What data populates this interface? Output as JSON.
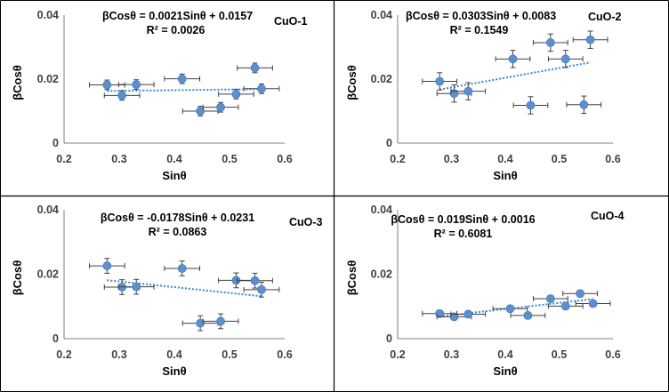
{
  "colors": {
    "marker": "#5b8fd0",
    "trend": "#2e89d9",
    "error_bar": "#404040",
    "axis": "#808080",
    "border": "#000000"
  },
  "chart_data": [
    {
      "type": "scatter",
      "sample": "CuO-1",
      "equation": "βCosθ = 0.0021Sinθ + 0.0157",
      "r2": "R² = 0.0026",
      "xlabel": "Sinθ",
      "ylabel": "βCosθ",
      "xlim": [
        0.2,
        0.6
      ],
      "ylim": [
        0,
        0.04
      ],
      "xticks": [
        "0.2",
        "0.3",
        "0.4",
        "0.5",
        "0.6"
      ],
      "yticks": [
        "0",
        "0.02",
        "0.04"
      ],
      "x_error": 0.032,
      "y_error": 0.0015,
      "points": [
        {
          "x": 0.278,
          "y": 0.0182
        },
        {
          "x": 0.305,
          "y": 0.0149
        },
        {
          "x": 0.331,
          "y": 0.0183
        },
        {
          "x": 0.414,
          "y": 0.0201
        },
        {
          "x": 0.447,
          "y": 0.01
        },
        {
          "x": 0.484,
          "y": 0.0112
        },
        {
          "x": 0.512,
          "y": 0.0153
        },
        {
          "x": 0.546,
          "y": 0.0235
        },
        {
          "x": 0.558,
          "y": 0.017
        }
      ],
      "trendline": {
        "slope": 0.0021,
        "intercept": 0.0157,
        "x_range": [
          0.278,
          0.558
        ]
      }
    },
    {
      "type": "scatter",
      "sample": "CuO-2",
      "equation": "βCosθ = 0.0303Sinθ + 0.0083",
      "r2": "R² = 0.1549",
      "xlabel": "Sinθ",
      "ylabel": "βCosθ",
      "xlim": [
        0.2,
        0.6
      ],
      "ylim": [
        0,
        0.04
      ],
      "xticks": [
        "0.2",
        "0.3",
        "0.4",
        "0.5",
        "0.6"
      ],
      "yticks": [
        "0",
        "0.02",
        "0.04"
      ],
      "x_error": 0.032,
      "y_error": 0.0027,
      "points": [
        {
          "x": 0.278,
          "y": 0.0193
        },
        {
          "x": 0.305,
          "y": 0.0155
        },
        {
          "x": 0.331,
          "y": 0.0162
        },
        {
          "x": 0.414,
          "y": 0.0263
        },
        {
          "x": 0.447,
          "y": 0.0118
        },
        {
          "x": 0.484,
          "y": 0.0314
        },
        {
          "x": 0.512,
          "y": 0.0263
        },
        {
          "x": 0.546,
          "y": 0.012
        },
        {
          "x": 0.558,
          "y": 0.0323
        }
      ],
      "trendline": {
        "slope": 0.0303,
        "intercept": 0.0083,
        "x_range": [
          0.278,
          0.558
        ]
      }
    },
    {
      "type": "scatter",
      "sample": "CuO-3",
      "equation": "βCosθ = -0.0178Sinθ + 0.0231",
      "r2": "R² = 0.0863",
      "xlabel": "Sinθ",
      "ylabel": "βCosθ",
      "xlim": [
        0.2,
        0.6
      ],
      "ylim": [
        0,
        0.04
      ],
      "xticks": [
        "0.2",
        "0.3",
        "0.4",
        "0.5",
        "0.6"
      ],
      "yticks": [
        "0",
        "0.02",
        "0.04"
      ],
      "x_error": 0.032,
      "y_error": 0.0023,
      "points": [
        {
          "x": 0.278,
          "y": 0.0226
        },
        {
          "x": 0.305,
          "y": 0.016
        },
        {
          "x": 0.331,
          "y": 0.0161
        },
        {
          "x": 0.414,
          "y": 0.0218
        },
        {
          "x": 0.447,
          "y": 0.0048
        },
        {
          "x": 0.484,
          "y": 0.0054
        },
        {
          "x": 0.512,
          "y": 0.0181
        },
        {
          "x": 0.546,
          "y": 0.018
        },
        {
          "x": 0.558,
          "y": 0.0152
        }
      ],
      "trendline": {
        "slope": -0.0178,
        "intercept": 0.0231,
        "x_range": [
          0.278,
          0.558
        ]
      }
    },
    {
      "type": "scatter",
      "sample": "CuO-4",
      "equation": "βCosθ = 0.019Sinθ + 0.0016",
      "r2": "R² = 0.6081",
      "xlabel": "Sinθ",
      "ylabel": "βCosθ",
      "xlim": [
        0.2,
        0.6
      ],
      "ylim": [
        0,
        0.04
      ],
      "xticks": [
        "0.2",
        "0.3",
        "0.4",
        "0.5",
        "0.6"
      ],
      "yticks": [
        "0",
        "0.02",
        "0.04"
      ],
      "x_error": 0.032,
      "y_error": 0.001,
      "points": [
        {
          "x": 0.278,
          "y": 0.0078
        },
        {
          "x": 0.305,
          "y": 0.0068
        },
        {
          "x": 0.331,
          "y": 0.0076
        },
        {
          "x": 0.409,
          "y": 0.0093
        },
        {
          "x": 0.442,
          "y": 0.0072
        },
        {
          "x": 0.484,
          "y": 0.0124
        },
        {
          "x": 0.512,
          "y": 0.0101
        },
        {
          "x": 0.539,
          "y": 0.014
        },
        {
          "x": 0.563,
          "y": 0.0109
        }
      ],
      "trendline": {
        "slope": 0.019,
        "intercept": 0.0016,
        "x_range": [
          0.278,
          0.563
        ]
      }
    }
  ]
}
